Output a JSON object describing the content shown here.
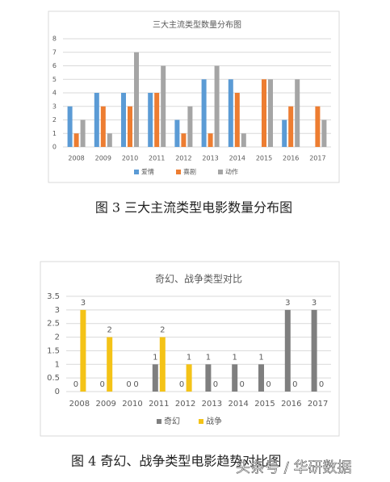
{
  "chart_data": [
    {
      "type": "bar",
      "title": "三大主流类型数量分布图",
      "categories": [
        "2008",
        "2009",
        "2010",
        "2011",
        "2012",
        "2013",
        "2014",
        "2015",
        "2016",
        "2017"
      ],
      "series": [
        {
          "name": "爱情",
          "color": "#5b9bd5",
          "values": [
            3,
            4,
            4,
            4,
            2,
            5,
            5,
            0,
            2,
            0
          ]
        },
        {
          "name": "喜剧",
          "color": "#ed7d31",
          "values": [
            1,
            3,
            3,
            4,
            1,
            1,
            4,
            5,
            3,
            3
          ]
        },
        {
          "name": "动作",
          "color": "#a5a5a5",
          "values": [
            2,
            1,
            7,
            6,
            3,
            6,
            1,
            5,
            5,
            2
          ]
        }
      ],
      "ylim": [
        0,
        8
      ],
      "yticks": [
        0,
        1,
        2,
        3,
        4,
        5,
        6,
        7,
        8
      ],
      "grid": true,
      "legend": "bottom",
      "data_labels": false
    },
    {
      "type": "bar",
      "title": "奇幻、战争类型对比",
      "categories": [
        "2008",
        "2009",
        "2010",
        "2011",
        "2012",
        "2013",
        "2014",
        "2015",
        "2016",
        "2017"
      ],
      "series": [
        {
          "name": "奇幻",
          "color": "#7f7f7f",
          "values": [
            0,
            0,
            0,
            1,
            0,
            1,
            1,
            1,
            3,
            3
          ]
        },
        {
          "name": "战争",
          "color": "#f4c317",
          "values": [
            3,
            2,
            0,
            2,
            1,
            0,
            0,
            0,
            0,
            0
          ]
        }
      ],
      "ylim": [
        0,
        3.5
      ],
      "yticks": [
        0,
        0.5,
        1,
        1.5,
        2,
        2.5,
        3,
        3.5
      ],
      "grid": true,
      "legend": "bottom",
      "data_labels": true
    }
  ],
  "captions": [
    "图 3  三大主流类型电影数量分布图",
    "图 4  奇幻、战争类型电影趋势对比图"
  ],
  "watermark": "头条号 / 华研数据"
}
